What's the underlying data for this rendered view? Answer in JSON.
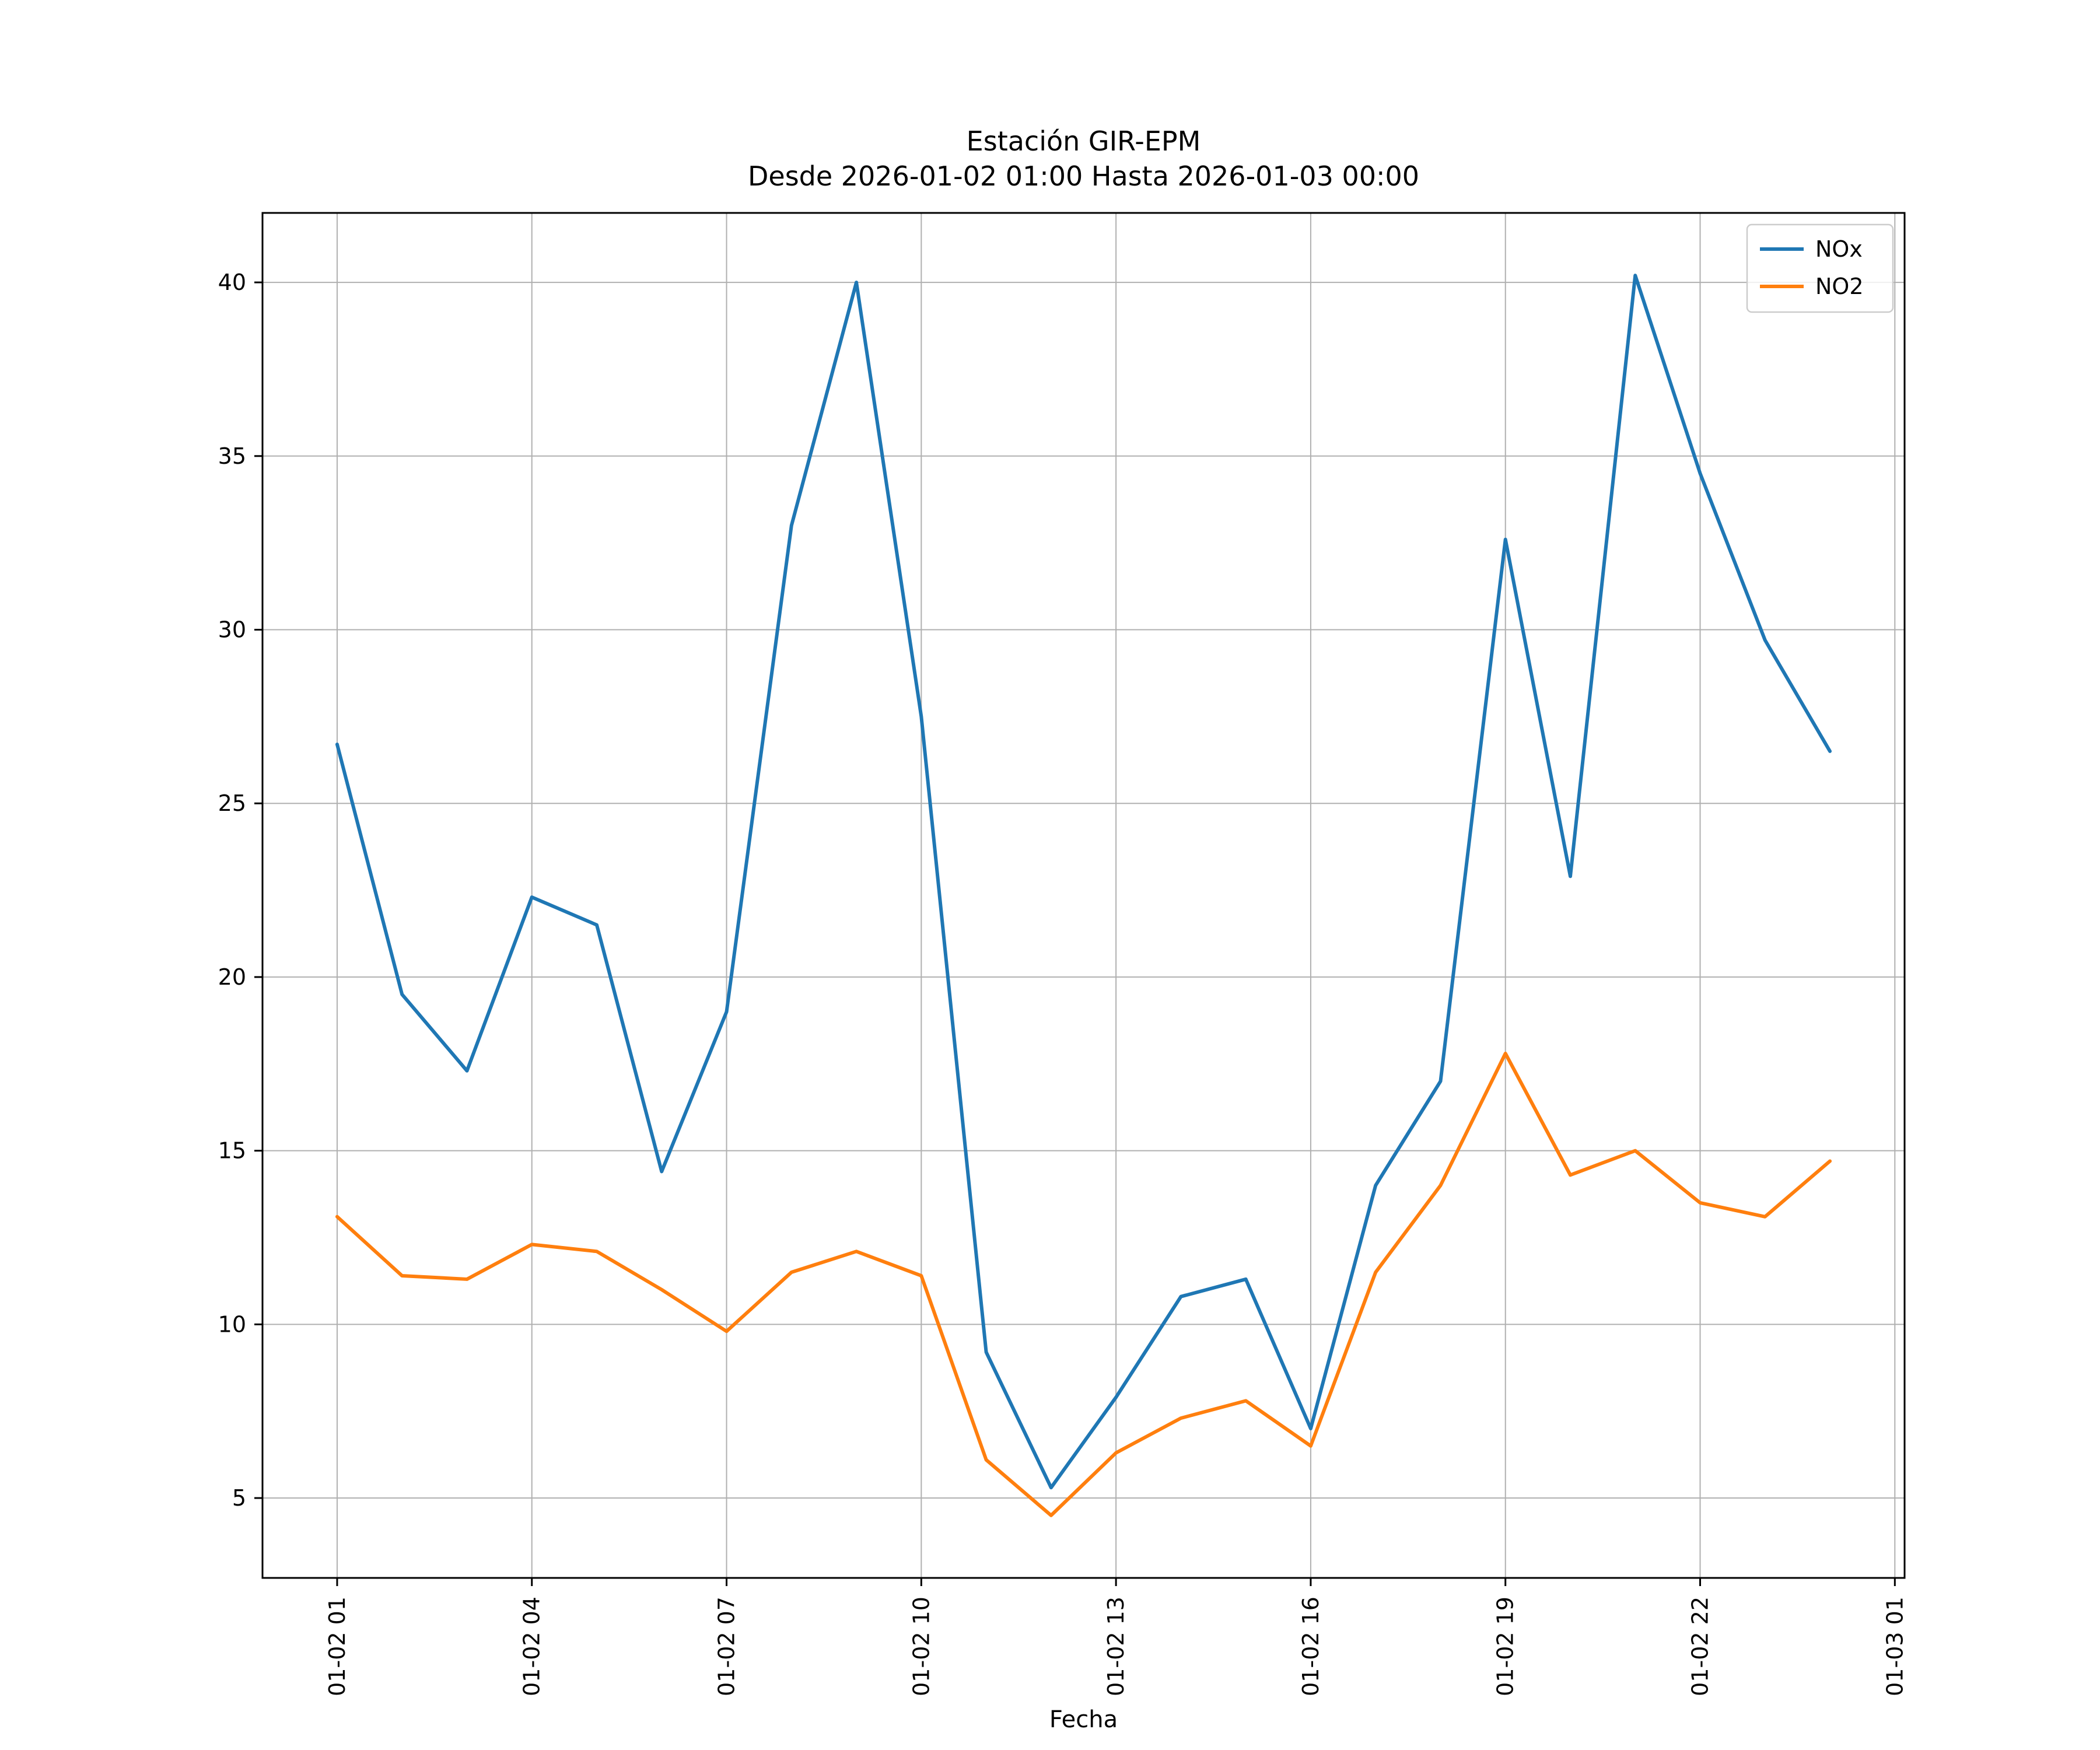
{
  "chart_data": {
    "type": "line",
    "title": "Estación GIR-EPM",
    "subtitle": "Desde 2026-01-02 01:00 Hasta 2026-01-03 00:00",
    "xlabel": "Fecha",
    "ylabel": "",
    "x_hours": [
      1,
      2,
      3,
      4,
      5,
      6,
      7,
      8,
      9,
      10,
      11,
      12,
      13,
      14,
      15,
      16,
      17,
      18,
      19,
      20,
      21,
      22,
      23,
      24
    ],
    "series": [
      {
        "name": "NOx",
        "color": "#1f77b4",
        "values": [
          26.7,
          19.5,
          17.3,
          22.3,
          21.5,
          14.4,
          19.0,
          33.0,
          40.0,
          27.5,
          9.2,
          5.3,
          7.9,
          10.8,
          11.3,
          7.0,
          14.0,
          17.0,
          32.6,
          22.9,
          40.2,
          34.5,
          29.7,
          26.5
        ]
      },
      {
        "name": "NO2",
        "color": "#ff7f0e",
        "values": [
          13.1,
          11.4,
          11.3,
          12.3,
          12.1,
          11.0,
          9.8,
          11.5,
          12.1,
          11.4,
          6.1,
          4.5,
          6.3,
          7.3,
          7.8,
          6.5,
          11.5,
          14.0,
          17.8,
          14.3,
          15.0,
          13.5,
          13.1,
          14.7
        ]
      }
    ],
    "xlim": [
      -0.15,
      25.15
    ],
    "ylim": [
      2.7,
      42.0
    ],
    "x_ticks": [
      {
        "value": 1,
        "label": "01-02 01"
      },
      {
        "value": 4,
        "label": "01-02 04"
      },
      {
        "value": 7,
        "label": "01-02 07"
      },
      {
        "value": 10,
        "label": "01-02 10"
      },
      {
        "value": 13,
        "label": "01-02 13"
      },
      {
        "value": 16,
        "label": "01-02 16"
      },
      {
        "value": 19,
        "label": "01-02 19"
      },
      {
        "value": 22,
        "label": "01-02 22"
      },
      {
        "value": 25,
        "label": "01-03 01"
      }
    ],
    "y_ticks": [
      5,
      10,
      15,
      20,
      25,
      30,
      35,
      40
    ],
    "grid": true,
    "legend": {
      "position": "upper right",
      "entries": [
        "NOx",
        "NO2"
      ]
    },
    "style": {
      "grid_color": "#b0b0b0",
      "spine_color": "#000000",
      "legend_edge_color": "#cccccc",
      "background": "#ffffff"
    }
  }
}
